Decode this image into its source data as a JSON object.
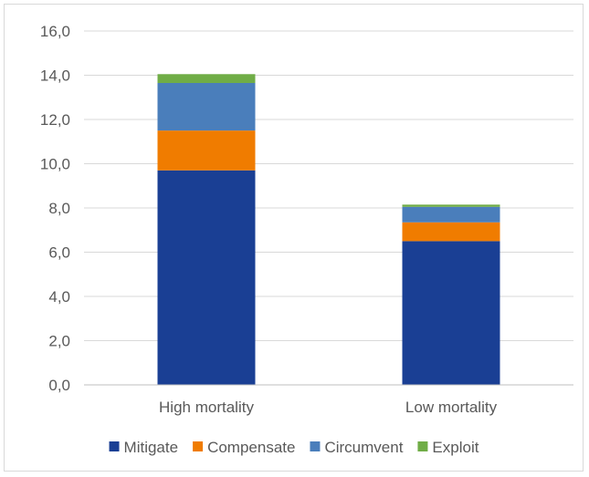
{
  "chart_data": {
    "type": "bar",
    "stacked": true,
    "categories": [
      "High mortality",
      "Low mortality"
    ],
    "series": [
      {
        "name": "Mitigate",
        "color": "#1a3f94",
        "values": [
          9.7,
          6.5
        ]
      },
      {
        "name": "Compensate",
        "color": "#f07c00",
        "values": [
          1.8,
          0.85
        ]
      },
      {
        "name": "Circumvent",
        "color": "#4a7ebb",
        "values": [
          2.15,
          0.7
        ]
      },
      {
        "name": "Exploit",
        "color": "#70ad47",
        "values": [
          0.4,
          0.1
        ]
      }
    ],
    "ylim": [
      0,
      16
    ],
    "yticks": [
      "0,0",
      "2,0",
      "4,0",
      "6,0",
      "8,0",
      "10,0",
      "12,0",
      "14,0",
      "16,0"
    ],
    "grid": true,
    "legend_position": "bottom"
  }
}
